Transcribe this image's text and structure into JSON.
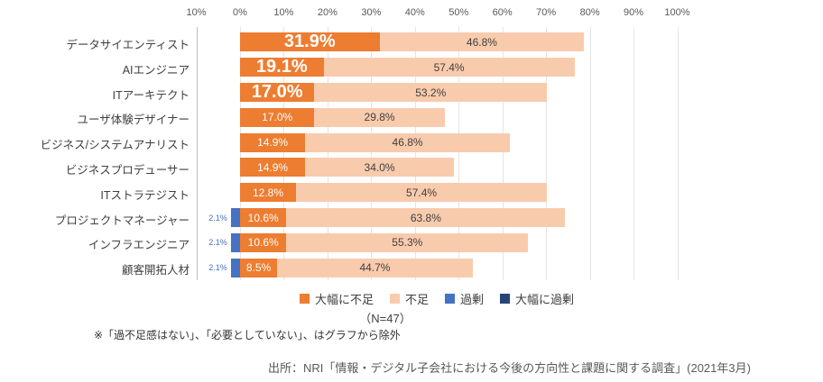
{
  "chart_data": {
    "type": "bar",
    "orientation": "horizontal",
    "stacked": true,
    "categories": [
      "データサイエンティスト",
      "AIエンジニア",
      "ITアーキテクト",
      "ユーザ体験デザイナー",
      "ビジネス/システムアナリスト",
      "ビジネスプロデューサー",
      "ITストラテジスト",
      "プロジェクトマネージャー",
      "インフラエンジニア",
      "顧客開拓人材"
    ],
    "series": [
      {
        "name": "大幅に不足",
        "color": "#ed7d31",
        "direction": "positive",
        "values": [
          31.9,
          19.1,
          17.0,
          17.0,
          14.9,
          14.9,
          12.8,
          10.6,
          10.6,
          8.5
        ]
      },
      {
        "name": "不足",
        "color": "#f8cbad",
        "direction": "positive",
        "values": [
          46.8,
          57.4,
          53.2,
          29.8,
          46.8,
          34.0,
          57.4,
          63.8,
          55.3,
          44.7
        ]
      },
      {
        "name": "過剰",
        "color": "#4472c4",
        "direction": "negative",
        "values": [
          0,
          0,
          0,
          0,
          0,
          0,
          0,
          2.1,
          2.1,
          2.1
        ]
      },
      {
        "name": "大幅に過剰",
        "color": "#264478",
        "direction": "negative",
        "values": [
          0,
          0,
          0,
          0,
          0,
          0,
          0,
          0,
          0,
          0
        ]
      }
    ],
    "x_axis": {
      "min": -10,
      "max": 100,
      "tick_step": 10,
      "tick_labels": [
        "10%",
        "0%",
        "10%",
        "20%",
        "30%",
        "40%",
        "50%",
        "60%",
        "70%",
        "80%",
        "90%",
        "100%"
      ]
    },
    "grid": true,
    "legend_position": "bottom",
    "large_label_rows": [
      0,
      1,
      2
    ],
    "title": ""
  },
  "notes": {
    "sample_size": "（N=47）",
    "footnote": "※「過不足感はない」、「必要としていない」、はグラフから除外",
    "source": "出所：NRI「情報・デジタル子会社における今後の方向性と課題に関する調査」(2021年3月)"
  },
  "colors": {
    "severe_shortage": "#ed7d31",
    "shortage": "#f8cbad",
    "excess": "#4472c4",
    "severe_excess": "#264478",
    "gridline": "#e4e4e4",
    "axis_line": "#bfbfbf",
    "tick_text": "#595959",
    "label_text": "#404040"
  }
}
